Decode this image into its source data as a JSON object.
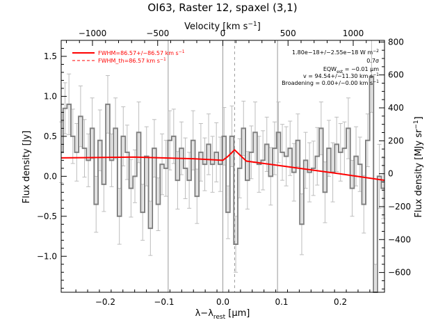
{
  "chart_data": {
    "type": "line",
    "title": "OI63, Raster 12, spaxel (3,1)",
    "xlabel": "λ−λ",
    "xlabel_sub": "rest",
    "xlabel_unit": " [μm]",
    "ylabel": "Flux density [Jy]",
    "top_axis_label": "Velocity [km s",
    "top_axis_label_sup": "−1",
    "top_axis_label_end": "]",
    "right_axis_label": "Flux density [MJy sr",
    "right_axis_label_sup": "−1",
    "right_axis_label_end": "]",
    "xlim": [
      -0.275,
      0.275
    ],
    "ylim": [
      -1.45,
      1.7
    ],
    "toplim": [
      -1240,
      1240
    ],
    "rightlim": [
      -720,
      810
    ],
    "x_ticks": [
      -0.2,
      -0.1,
      0.0,
      0.1,
      0.2
    ],
    "x_tick_labels": [
      "−0.2",
      "−0.1",
      "0.0",
      "0.1",
      "0.2"
    ],
    "y_ticks": [
      -1.0,
      -0.5,
      0.0,
      0.5,
      1.0,
      1.5
    ],
    "y_tick_labels": [
      "−1.0",
      "−0.5",
      "0.0",
      "0.5",
      "1.0",
      "1.5"
    ],
    "top_ticks": [
      -1000,
      -500,
      0,
      500,
      1000
    ],
    "top_tick_labels": [
      "−1000",
      "−500",
      "0",
      "500",
      "1000"
    ],
    "right_ticks": [
      -600,
      -400,
      -200,
      0,
      200,
      400,
      600,
      800
    ],
    "right_tick_labels": [
      "−600",
      "−400",
      "−200",
      "0",
      "200",
      "400",
      "600",
      "800"
    ],
    "vertical_lines": [
      -0.093,
      0.0,
      0.093
    ],
    "line_center": 0.02,
    "legend": [
      {
        "label": "FWHM=86.57+/−86.57 km s",
        "sup": "−1",
        "style": "solid",
        "color": "#ff0000"
      },
      {
        "label": "FWHM_th=86.57 km s",
        "sup": "−1",
        "style": "dashed",
        "color": "#ff0000"
      }
    ],
    "annotations": [
      {
        "text": "1.80e−18+/−2.55e−18 W m",
        "sup": "−2"
      },
      {
        "text": "0.7σ"
      },
      {
        "text": "EQW",
        "sub": "est",
        "rest": " = −0.01 μm"
      },
      {
        "text": "v = 94.54+/−11.30 km s",
        "sup": "−1"
      },
      {
        "text": "Broadening = 0.00+/−0.00 km s",
        "sup": "−1"
      }
    ],
    "series": [
      {
        "name": "data",
        "color": "#808080",
        "x": [
          -0.275,
          -0.2684,
          -0.2618,
          -0.2552,
          -0.2486,
          -0.242,
          -0.2354,
          -0.2288,
          -0.2222,
          -0.2156,
          -0.209,
          -0.2024,
          -0.1958,
          -0.1892,
          -0.1826,
          -0.176,
          -0.1694,
          -0.1628,
          -0.1562,
          -0.1496,
          -0.143,
          -0.1364,
          -0.1298,
          -0.1232,
          -0.1166,
          -0.11,
          -0.1034,
          -0.0968,
          -0.0902,
          -0.0836,
          -0.077,
          -0.0704,
          -0.0638,
          -0.0572,
          -0.0506,
          -0.044,
          -0.0374,
          -0.0308,
          -0.0242,
          -0.0176,
          -0.011,
          -0.0044,
          0.0022,
          0.0088,
          0.0154,
          0.022,
          0.0286,
          0.0352,
          0.0418,
          0.0484,
          0.055,
          0.0616,
          0.0682,
          0.0748,
          0.0814,
          0.088,
          0.0946,
          0.1012,
          0.1078,
          0.1144,
          0.121,
          0.1276,
          0.1342,
          0.1408,
          0.1474,
          0.154,
          0.1606,
          0.1672,
          0.1738,
          0.1804,
          0.187,
          0.1936,
          0.2002,
          0.2068,
          0.2134,
          0.22,
          0.2266,
          0.2332,
          0.2398,
          0.2464,
          0.253,
          0.2596,
          0.2662,
          0.2728
        ],
        "y": [
          0.3,
          0.85,
          0.9,
          0.5,
          0.3,
          0.75,
          0.35,
          0.2,
          0.6,
          -0.35,
          0.45,
          -0.1,
          0.9,
          0.2,
          0.6,
          -0.5,
          0.5,
          0.3,
          -0.15,
          0.0,
          0.55,
          -0.45,
          0.25,
          -0.65,
          0.35,
          -0.35,
          0.15,
          0.1,
          0.45,
          0.5,
          -0.05,
          0.35,
          0.1,
          -0.05,
          0.45,
          -0.25,
          0.3,
          0.15,
          0.4,
          0.15,
          0.3,
          0.15,
          0.5,
          -0.45,
          0.5,
          -0.85,
          0.1,
          0.6,
          -0.05,
          0.3,
          0.55,
          0.15,
          0.2,
          0.4,
          0.0,
          0.35,
          0.55,
          0.3,
          0.25,
          0.35,
          0.05,
          0.45,
          -0.6,
          0.2,
          0.05,
          0.1,
          0.25,
          0.6,
          -0.2,
          0.35,
          0.05,
          0.4,
          0.3,
          0.35,
          0.6,
          -0.15,
          0.25,
          0.15,
          -0.35,
          0.45,
          1.25,
          -1.55,
          0.0,
          -0.15
        ],
        "err": [
          0.38,
          0.32,
          0.38,
          0.34,
          0.36,
          0.38,
          0.36,
          0.33,
          0.38,
          0.35,
          0.38,
          0.34,
          0.36,
          0.33,
          0.38,
          0.35,
          0.37,
          0.34,
          0.36,
          0.33,
          0.38,
          0.35,
          0.37,
          0.34,
          0.36,
          0.33,
          0.38,
          0.35,
          0.37,
          0.34,
          0.36,
          0.33,
          0.38,
          0.35,
          0.37,
          0.34,
          0.36,
          0.33,
          0.38,
          0.35,
          0.37,
          0.34,
          0.36,
          0.33,
          0.38,
          0.35,
          0.37,
          0.34,
          0.36,
          0.33,
          0.38,
          0.35,
          0.37,
          0.34,
          0.36,
          0.33,
          0.38,
          0.35,
          0.37,
          0.34,
          0.36,
          0.33,
          0.38,
          0.35,
          0.37,
          0.34,
          0.36,
          0.33,
          0.38,
          0.35,
          0.37,
          0.34,
          0.36,
          0.33,
          0.38,
          0.35,
          0.37,
          0.34,
          0.36,
          0.33,
          0.45,
          0.45,
          0.4,
          0.38
        ]
      },
      {
        "name": "fit",
        "color": "#ff0000",
        "x": [
          -0.275,
          -0.15,
          -0.05,
          0.0,
          0.008,
          0.02,
          0.032,
          0.04,
          0.1,
          0.2,
          0.275
        ],
        "y": [
          0.23,
          0.24,
          0.22,
          0.2,
          0.245,
          0.33,
          0.245,
          0.19,
          0.13,
          0.03,
          -0.05
        ]
      }
    ]
  }
}
